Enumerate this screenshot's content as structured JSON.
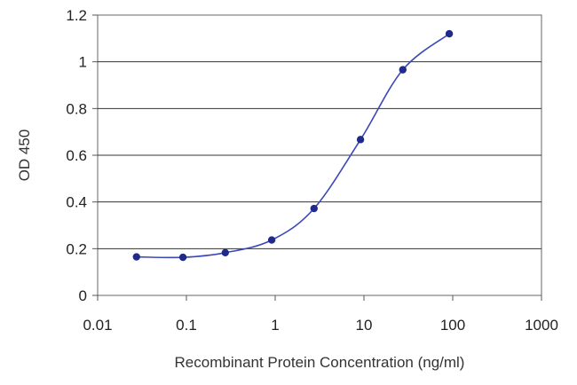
{
  "chart_data": {
    "type": "line",
    "title": "",
    "xlabel": "Recombinant Protein Concentration (ng/ml)",
    "ylabel": "OD 450",
    "x_scale": "log",
    "xlim": [
      0.01,
      1000
    ],
    "ylim": [
      0,
      1.2
    ],
    "x_ticks": [
      "0.01",
      "0.1",
      "1",
      "10",
      "100",
      "1000"
    ],
    "y_ticks": [
      "0",
      "0.2",
      "0.4",
      "0.6",
      "0.8",
      "1",
      "1.2"
    ],
    "grid": "horizontal",
    "colors": {
      "line": "#3b49b8",
      "points": "#1f2a8a",
      "grid": "#333333",
      "axis": "#555555"
    },
    "series": [
      {
        "x": [
          0.0274,
          0.0914,
          0.274,
          0.914,
          2.74,
          9.14,
          27.4,
          91.4
        ],
        "y": [
          0.165,
          0.163,
          0.183,
          0.237,
          0.372,
          0.667,
          0.966,
          1.12
        ]
      }
    ]
  }
}
